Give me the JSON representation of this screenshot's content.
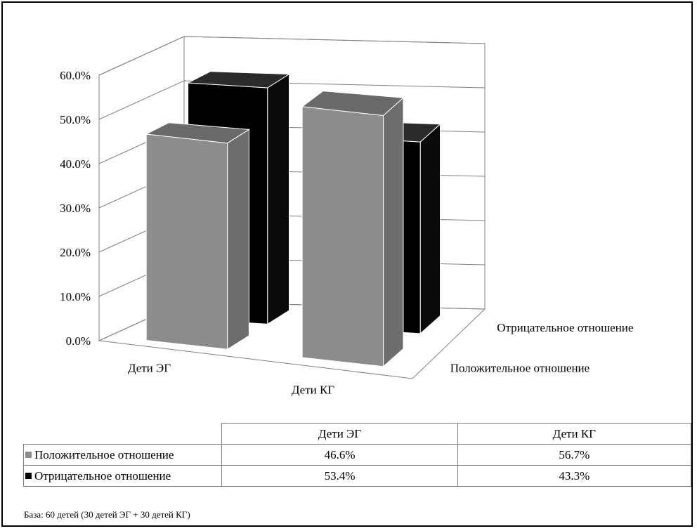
{
  "chart_data": {
    "type": "bar",
    "categories": [
      "Дети ЭГ",
      "Дети КГ"
    ],
    "series": [
      {
        "name": "Положительное отношение",
        "values": [
          46.6,
          56.7
        ],
        "color": "#8c8c8c"
      },
      {
        "name": "Отрицательное отношение",
        "values": [
          53.4,
          43.3
        ],
        "color": "#000000"
      }
    ],
    "ylim": [
      0,
      60
    ],
    "yticks": [
      "0.0%",
      "10.0%",
      "20.0%",
      "30.0%",
      "40.0%",
      "50.0%",
      "60.0%"
    ],
    "style": "3d-clustered-column",
    "grid": true
  },
  "table": {
    "headers": [
      "Дети ЭГ",
      "Дети КГ"
    ],
    "rows": [
      {
        "label": "Положительное отношение",
        "color": "#8c8c8c",
        "values": [
          "46.6%",
          "56.7%"
        ]
      },
      {
        "label": "Отрицательное отношение",
        "color": "#000000",
        "values": [
          "53.4%",
          "43.3%"
        ]
      }
    ]
  },
  "footnote": "База: 60 детей (30 детей ЭГ + 30 детей КГ)"
}
